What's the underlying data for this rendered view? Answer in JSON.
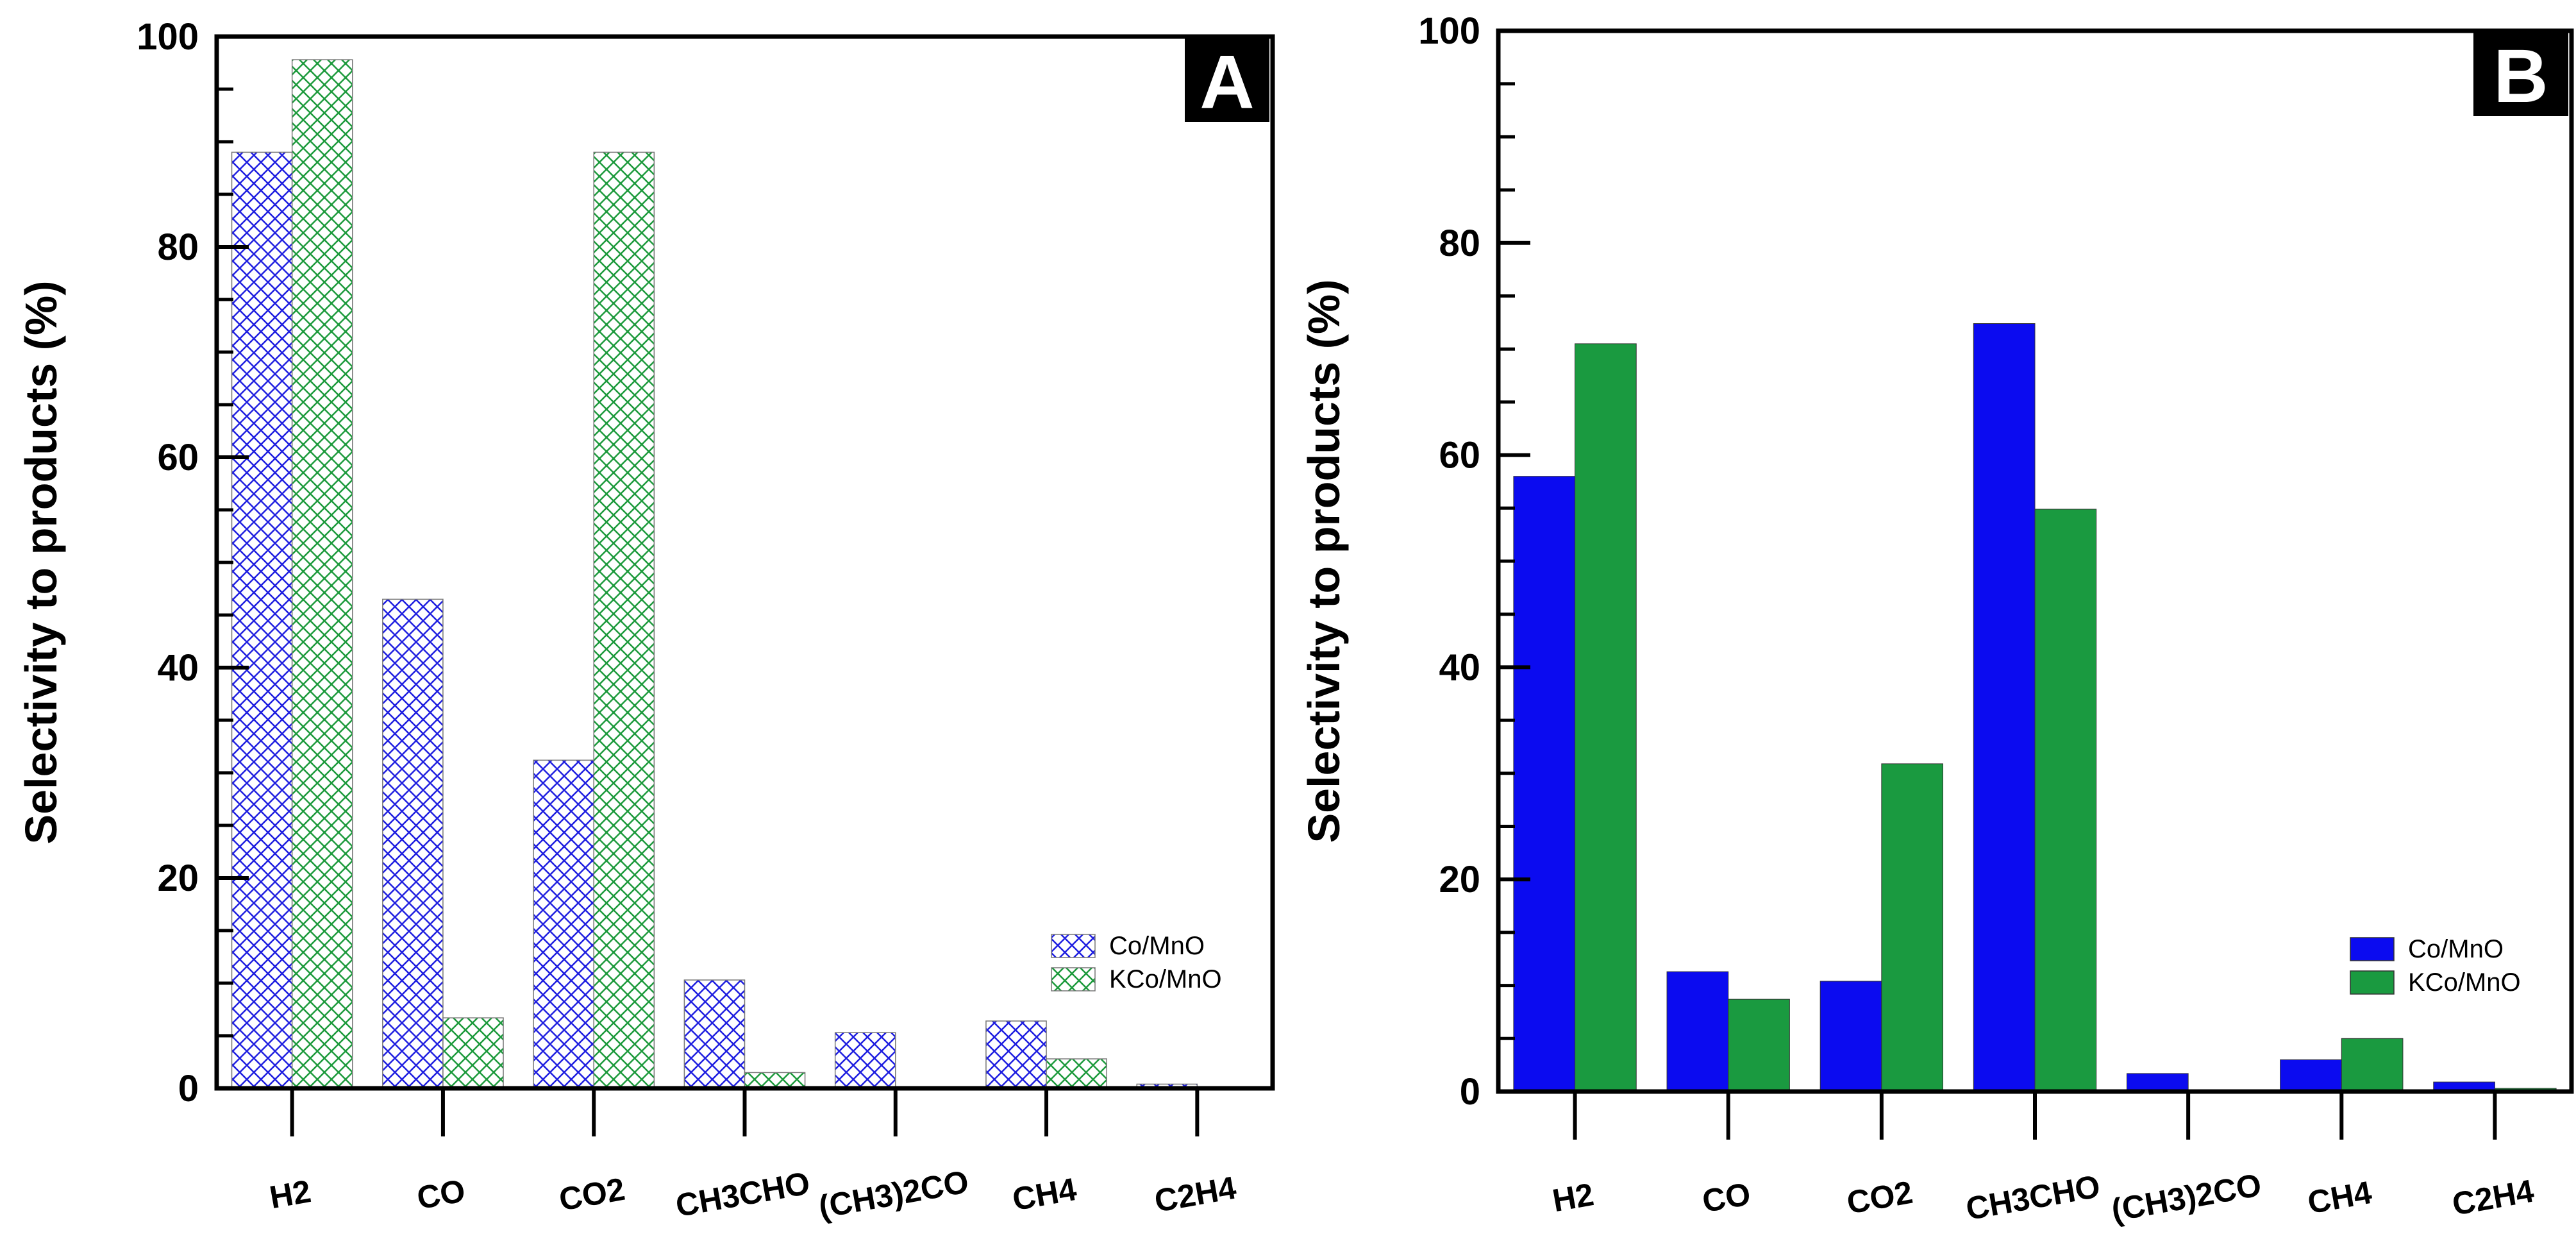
{
  "chart_data": [
    {
      "type": "bar",
      "panel_label": "A",
      "style": "hatched",
      "categories": [
        "H2",
        "CO",
        "CO2",
        "CH3CHO",
        "(CH3)2CO",
        "CH4",
        "C2H4"
      ],
      "series": [
        {
          "name": "Co/MnO",
          "color": "#1f1fe0",
          "values": [
            89.0,
            46.5,
            31.2,
            10.3,
            5.3,
            6.4,
            0.4
          ]
        },
        {
          "name": "KCo/MnO",
          "color": "#1d9a3c",
          "values": [
            97.8,
            6.7,
            89.0,
            1.5,
            0.0,
            2.8,
            0.0
          ]
        }
      ],
      "xlabel": "",
      "ylabel": "Selectivity to products (%)",
      "ylim": [
        0,
        100
      ],
      "yticks": [
        0,
        20,
        40,
        60,
        80,
        100
      ],
      "legend_position": "bottom-right"
    },
    {
      "type": "bar",
      "panel_label": "B",
      "style": "solid",
      "categories": [
        "H2",
        "CO",
        "CO2",
        "CH3CHO",
        "(CH3)2CO",
        "CH4",
        "C2H4"
      ],
      "series": [
        {
          "name": "Co/MnO",
          "color": "#0b0bf0",
          "values": [
            58.0,
            11.3,
            10.4,
            72.4,
            1.7,
            3.0,
            0.9
          ]
        },
        {
          "name": "KCo/MnO",
          "color": "#1a9a40",
          "values": [
            70.5,
            8.7,
            30.9,
            54.9,
            0.0,
            5.0,
            0.3
          ]
        }
      ],
      "xlabel": "",
      "ylabel": "Selectivity to products (%)",
      "ylim": [
        0,
        100
      ],
      "yticks": [
        0,
        20,
        40,
        60,
        80,
        100
      ],
      "legend_position": "bottom-right"
    }
  ]
}
